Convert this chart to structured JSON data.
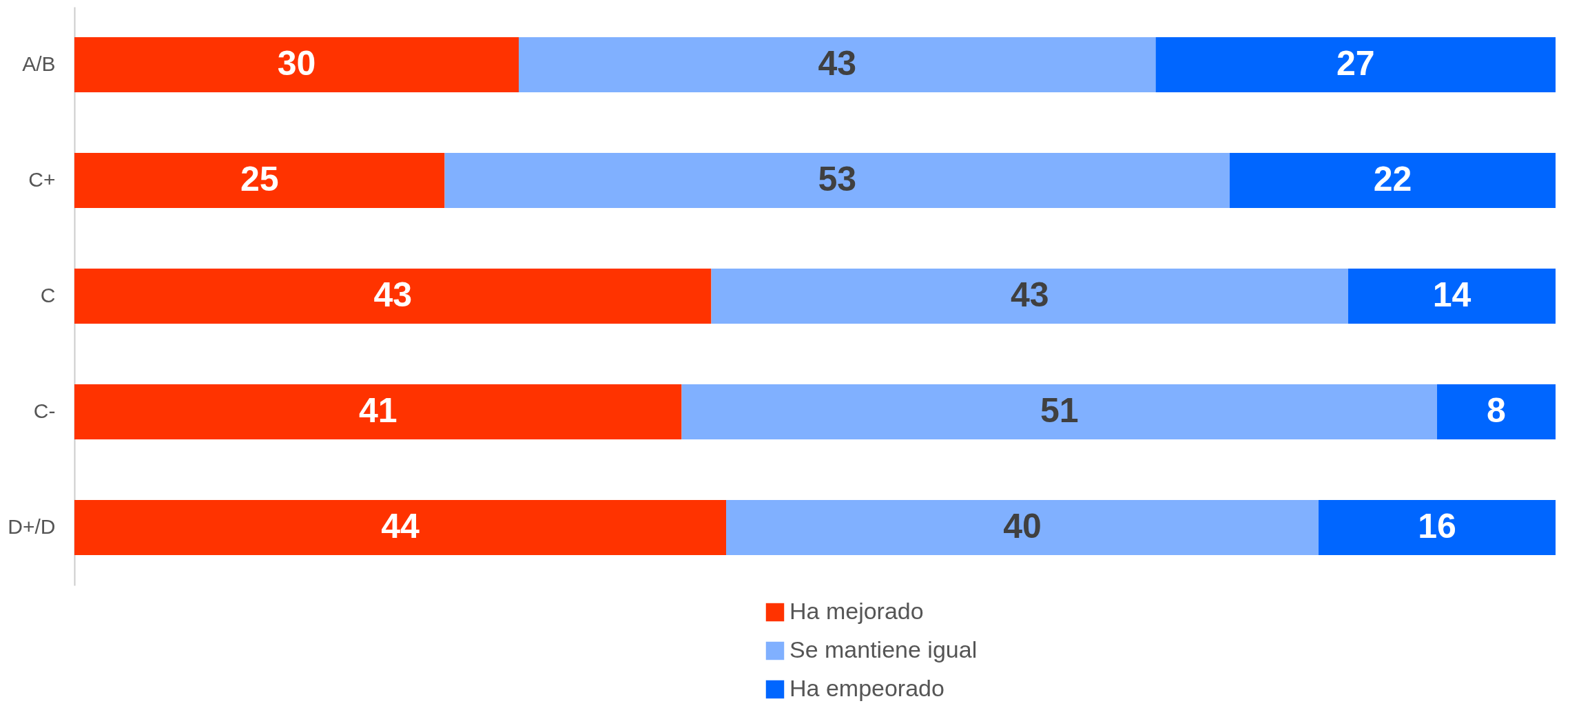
{
  "chart_data": {
    "type": "bar",
    "orientation": "horizontal",
    "stacked": true,
    "data_labels": true,
    "legend": "bottom",
    "xlim": [
      0,
      100
    ],
    "tick_labels": "y",
    "categories": [
      "A/B",
      "C+",
      "C",
      "C-",
      "D+/D"
    ],
    "series": [
      {
        "name": "Ha mejorado",
        "color": "#ff3300",
        "values": [
          30,
          25,
          43,
          41,
          44
        ]
      },
      {
        "name": "Se mantiene igual",
        "color": "#80b0ff",
        "values": [
          43,
          53,
          43,
          51,
          40
        ]
      },
      {
        "name": "Ha empeorado",
        "color": "#0066ff",
        "values": [
          27,
          22,
          14,
          8,
          16
        ]
      }
    ]
  }
}
